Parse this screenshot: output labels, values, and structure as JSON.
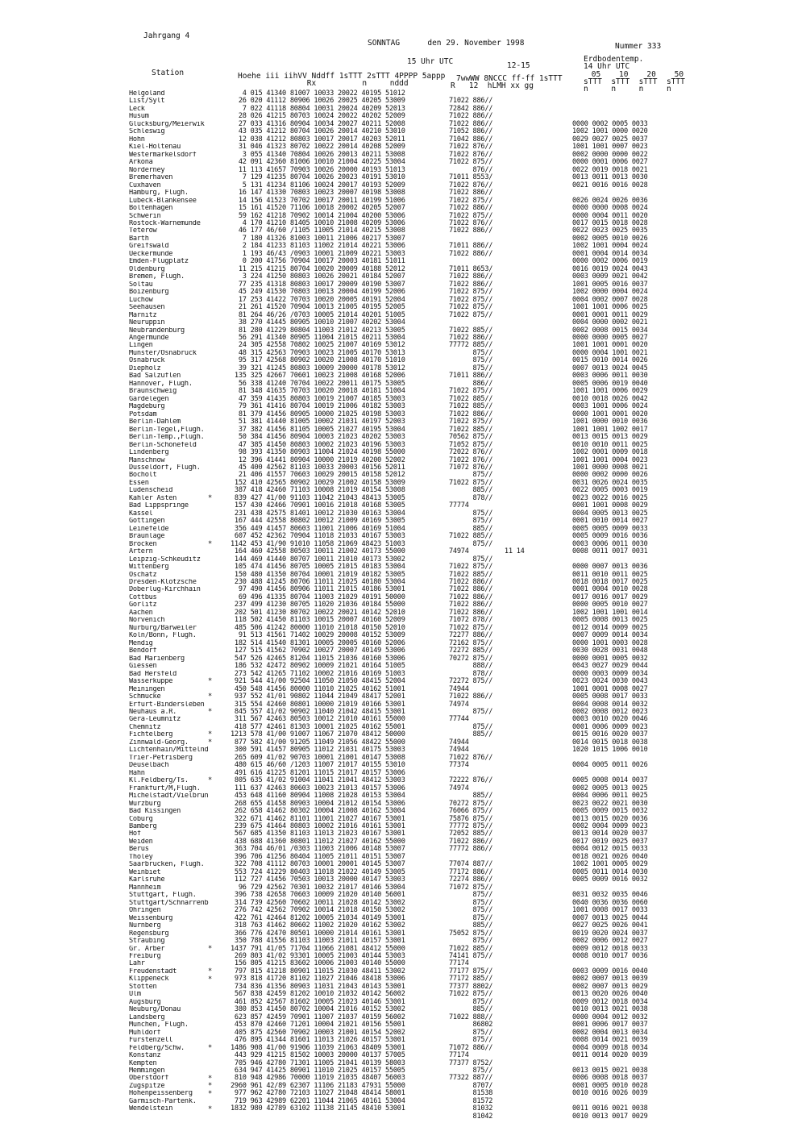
{
  "header": {
    "jahrgang": "Jahrgang 4",
    "date": "SONNTAG      den 29. November 1998",
    "nummer": "Nummer 333"
  },
  "columns": {
    "station": "Station",
    "uhr15": "15 Uhr UTC",
    "r1215": "12-15",
    "erd_title": "Erdbodentemp.",
    "erd_sub": "14 Uhr UTC",
    "erd_depths": " 05    10    20    50",
    "erd_codes": "sTTT  sTTT  sTTT  sTTT",
    "erd_n": "n     n     n     n",
    "main1": "Hoehe iii iihVV Nddff 1sTTT 2sTTT 4PPPP 5appp",
    "main2": "               Rx          n     nddd",
    "ww1": "7wwWW 8NCCC ff-ff 1sTTT",
    "ww2": "R   12  hLMH xx gg"
  },
  "stations": [
    "Helgoland",
    "List/Sylt",
    "Leck",
    "Husum",
    "Glücksburg/Meierwik",
    "Schleswig",
    "Hohn",
    "Kiel-Holtenau",
    "Westermarkelsdorf",
    "Arkona",
    "Norderney",
    "Bremerhaven",
    "Cuxhaven",
    "Hamburg, Flugh.",
    "Lübeck-Blankensee",
    "Boltenhagen",
    "Schwerin",
    "Rostock-Warnemünde",
    "Teterow",
    "Barth",
    "Greifswald",
    "Ueckermünde",
    "Emden-Flugplatz",
    "Oldenburg",
    "Bremen, Flugh.",
    "Soltau",
    "Boizenburg",
    "Lüchow",
    "Seehausen",
    "Marnitz",
    "Neuruppin",
    "Neubrandenburg",
    "Angermünde",
    "Lingen",
    "Münster/Osnabrück",
    "Osnabrück",
    "Diepholz",
    "Bad Salzuflen",
    "Hannover, Flugh.",
    "Braunschweig",
    "Gardelegen",
    "Magdeburg",
    "Potsdam",
    "Berlin-Dahlem",
    "Berlin-Tegel,Flugh.",
    "Berlin-Temp.,Flugh.",
    "Berlin-Schönefeld",
    "Lindenberg",
    "Manschnow",
    "Düsseldorf, Flugh.",
    "Bocholt",
    "Essen",
    "Lüdenscheid",
    "Kahler Asten",
    "Bad Lippspringe",
    "Kassel",
    "Göttingen",
    "Leinefelde",
    "Braunlage",
    "Brocken",
    "Artern",
    "Leipzig-Schkeuditz",
    "Wittenberg",
    "Oschatz",
    "Dresden-Klotzsche",
    "Doberlug-Kirchhain",
    "Cottbus",
    "Görlitz",
    "Aachen",
    "Nörvenich",
    "Nürburg/Barweiler",
    "Köln/Bonn, Flugh.",
    "Mendig",
    "Bendorf",
    "Bad Marienberg",
    "Giessen",
    "Bad Hersfeld",
    "Wasserkuppe",
    "Meiningen",
    "Schmücke",
    "Erfurt-Bindersleben",
    "Neuhaus a.R.",
    "Gera-Leumnitz",
    "Chemnitz",
    "Fichtelberg",
    "Zinnwald-Georg.",
    "Lichtenhain/Mittelnd",
    "Trier-Petrisberg",
    "Deuselbach",
    "Hahn",
    "Kl.Feldberg/Ts.",
    "Frankfurt/M,Flugh.",
    "Michelstadt/Vielbrun",
    "Würzburg",
    "Bad Kissingen",
    "Coburg",
    "Bamberg",
    "Hof",
    "Weiden",
    "Berus",
    "Tholey",
    "Saarbrücken, Flugh.",
    "Weinbiet",
    "Karlsruhe",
    "Mannheim",
    "Stuttgart, Flugh.",
    "Stuttgart/Schnarrenb",
    "Öhringen",
    "Weissenburg",
    "Nürnberg",
    "Regensburg",
    "Straubing",
    "Gr. Arber",
    "Freiburg",
    "Lahr",
    "Freudenstadt",
    "Klippeneck",
    "Stötten",
    "Ulm",
    "Augsburg",
    "Neuburg/Donau",
    "Landsberg",
    "München, Flugh.",
    "Mühldorf",
    "Fürstenzell",
    "Feldberg/Schw.",
    "Konstanz",
    "Kempten",
    "Memmingen",
    "Oberstdorf",
    "Zugspitze",
    "Hohenpeissenberg",
    "Garmisch-Partenk.",
    "Wendelstein"
  ],
  "main": [
    "   4 015 41340 81007 10033 20022 40195 51012",
    "  26 020 41112 80906 10026 20025 40205 53009",
    "   7 022 41118 80804 10031 20024 40209 52013",
    "  28 026 41215 80703 10024 20022 40202 52009",
    "  27 033 41316 80904 10034 20027 40211 52008",
    "  43 035 41212 80704 10026 20014 40210 53010",
    "  12 038 41212 80803 10017 20017 40203 52011",
    "  31 046 41323 80702 10022 20014 40208 52009",
    "   3 055 41340 70804 10026 20013 40211 53008",
    "  42 091 42360 81006 10010 21004 40225 53004",
    "  11 113 41657 70903 10026 20000 40193 51013",
    "   7 129 41235 80704 10026 20023 40191 53010",
    "   5 131 41234 81106 10024 20017 40193 52009",
    "  16 147 41330 70803 10023 20007 40198 53008",
    "  14 156 41523 70702 10017 20011 40199 51006",
    "  15 161 41520 71106 10018 20002 40205 52007",
    "  59 162 41218 70902 10014 21004 40200 53006",
    "   4 170 41210 81405 10010 21008 40209 53006",
    "  46 177 46/60 /1105 11005 21014 40215 53008",
    "   7 180 41326 81003 10011 21006 40217 53007",
    "   2 184 41233 81103 11002 21014 40221 53006",
    "   1 193 46/43 /0903 10001 21009 40221 53003",
    "   0 200 41756 70904 10017 20003 40181 51011",
    "  11 215 41215 80704 10020 20009 40188 52012",
    "   3 224 41250 80803 10026 20021 40184 52007",
    "  77 235 41318 80803 10017 20009 40190 53007",
    "  45 249 41530 70803 10013 20004 40199 52006",
    "  17 253 41422 70703 10020 20005 40191 52004",
    "  21 261 41520 70904 10013 21005 40195 52005",
    "  81 264 46/26 /0703 10005 21014 40201 51005",
    "  38 270 41445 80905 10010 21007 40202 53004",
    "  81 280 41229 80804 11003 21012 40213 53005",
    "  56 291 41340 80905 11004 21015 40211 53004",
    "  24 305 42558 70802 10025 21007 40169 53012",
    "  48 315 42563 70903 10023 21005 40170 53013",
    "  95 317 42568 80902 10020 21008 40170 51010",
    "  39 321 41245 80803 10009 20000 40178 53012",
    " 135 325 42667 70601 10023 21008 40168 52006",
    "  56 338 41240 70704 10022 20011 40175 53005",
    "  81 348 41635 70703 10020 20018 40181 51004",
    "  47 359 41435 80803 10019 21007 40185 53003",
    "  79 361 41416 80704 10019 21006 40182 53003",
    "  81 379 41456 80905 10000 21025 40198 53003",
    "  51 381 41440 81005 10002 21031 40197 52003",
    "  37 382 41456 81105 10005 21027 40195 53004",
    "  50 384 41456 80904 10003 21023 40202 53003",
    "  47 385 41450 80803 10002 21023 40196 53003",
    "  98 393 41350 80903 11004 21024 40198 55000",
    "  12 396 41441 80904 10000 21019 40200 52002",
    "  45 400 42562 81103 10033 20003 40156 52011",
    "  21 406 41557 70603 10029 20015 40158 52012",
    " 152 410 42565 80902 10029 21002 40158 53009",
    " 387 418 42460 71103 10008 21019 40154 53008",
    " 839 427 41/00 91103 11042 21043 48413 53005",
    " 157 430 42466 70901 10016 21018 40168 53005",
    " 231 438 42575 81401 10012 21030 40163 53004",
    " 167 444 42558 80802 10012 21009 40169 53005",
    " 356 449 41457 80603 11001 21006 40169 51004",
    " 607 452 42362 70904 11018 21033 40167 53003",
    "1142 453 41/90 91010 11058 21069 48423 51003",
    " 164 460 42558 80503 10011 21002 40173 55000",
    " 144 469 41440 80707 10011 21010 40173 53002",
    " 105 474 41456 80705 10005 21015 40183 53004",
    " 150 480 41350 80704 10001 21019 40182 53005",
    " 230 488 41245 80706 11011 21025 40180 53004",
    "  97 490 41456 80906 11011 21015 40186 53001",
    "  69 496 41335 80704 11003 21029 40191 50000",
    " 237 499 41230 80705 11020 21036 40184 55000",
    " 202 501 41230 80702 10022 20021 40142 52010",
    " 118 502 41450 81103 10015 20007 40160 52009",
    " 485 506 41242 80000 11010 21018 40150 52010",
    "  91 513 41561 71402 10029 20008 40152 53009",
    " 182 514 41540 81301 10005 20005 40160 52006",
    " 127 515 41562 70902 10027 20007 40149 53006",
    " 547 526 42465 81204 11015 21036 40160 53006",
    " 186 532 42472 80902 10009 21021 40164 51005",
    " 273 542 41265 71102 10002 21016 40169 51003",
    " 921 544 41/00 92504 11050 21050 48415 52004",
    " 450 548 41456 80000 11010 21025 40162 51001",
    " 937 552 41/01 90802 11044 21049 48417 52001",
    " 315 554 42460 80801 10000 21019 40166 53001",
    " 845 557 41/02 90902 11040 21042 48415 53001",
    " 311 567 42463 80503 10012 21010 40161 55000",
    " 418 577 42461 81303 10001 21025 40162 55001",
    "1213 578 41/00 91007 11067 21070 48412 50000",
    " 877 582 41/00 91205 11049 21056 48422 55000",
    " 300 591 41457 80905 11012 21031 40175 53003",
    " 265 609 41/02 90703 10001 21001 40147 53008",
    " 480 615 46/60 /1203 11007 21017 40155 53010",
    " 491 616 41225 81201 11015 21017 40157 53006",
    " 805 635 41/02 91004 11041 21041 48412 53003",
    " 111 637 42463 80603 10023 21013 40157 53006",
    " 453 648 41160 80904 11008 21028 40153 53004",
    " 268 655 41458 80903 10004 21012 40154 53006",
    " 262 658 41462 80302 10004 21008 40162 53004",
    " 322 671 41462 81101 11001 21027 40167 53001",
    " 239 675 41464 80803 10002 21016 40161 53001",
    " 567 685 41350 81103 11013 21023 40167 53001",
    " 438 688 41360 80801 11012 21027 40162 55000",
    " 363 704 46/01 /0303 11003 21006 40148 53007",
    " 396 706 41256 80404 11005 21011 40151 53007",
    " 322 708 41112 80703 10001 20001 40145 53007",
    " 553 724 41229 80403 11018 21022 40149 53005",
    " 112 727 41456 70503 10013 20000 40147 53003",
    "  96 729 42562 70301 10032 21017 40146 53004",
    " 396 738 42658 70603 10009 21020 40140 56001",
    " 314 739 42560 70602 10011 21028 40142 53002",
    " 276 742 42562 70902 10014 21018 40150 53002",
    " 422 761 42464 81202 10005 21034 40149 53001",
    " 318 763 41462 80602 11002 21020 40162 53002",
    " 366 776 42470 80501 10000 21014 40161 53001",
    " 350 788 41556 81103 11003 21011 40157 53001",
    "1437 791 41/05 71704 11066 21081 48412 55000",
    " 269 803 41/02 93301 10005 21003 40144 53003",
    " 156 805 41215 83602 10006 21003 40140 55000",
    " 797 815 41218 80901 11015 21030 48411 53002",
    " 973 818 41720 81102 11027 21046 48418 53006",
    " 734 836 41356 80903 11031 21043 40143 53001",
    " 567 838 42459 81202 10010 21032 40142 56002",
    " 461 852 42567 81602 10005 21023 40146 53001",
    " 380 853 41450 80702 10004 21016 40152 53002",
    " 623 857 42459 70901 11007 21037 40159 56002",
    " 453 870 42460 71201 10004 21021 40156 55001",
    " 405 875 42560 70902 10003 21001 40154 52002",
    " 476 895 41344 81601 11013 21026 40157 53001",
    "1486 908 41/00 91906 11039 21063 48409 53001",
    " 443 929 41215 81502 10003 20000 40137 57005",
    " 705 946 42780 71301 11005 21041 40139 58003",
    " 634 947 41425 80901 11010 21025 40157 55005",
    " 810 948 42986 70000 11019 21035 48407 56003",
    "2960 961 42/89 62307 11106 21183 47931 55000",
    " 977 962 42780 72103 11027 21048 48414 58001",
    " 719 963 42989 62201 11044 21065 40161 53004",
    "1832 980 42789 63102 11138 21145 48410 53001"
  ],
  "ww": [
    "",
    "71022 886//",
    "72842 886//",
    "71022 886//",
    "71022 886//",
    "71052 886//",
    "71042 886//",
    "71022 876//",
    "71022 876//",
    "71022 875//",
    "      876//",
    "71011 8553/",
    "71022 876//",
    "71022 886//",
    "71022 875//",
    "71022 886//",
    "71022 875//",
    "71022 876//",
    "71022 886//",
    "",
    "71011 886//",
    "71022 886//",
    "",
    "71011 8653/",
    "71022 886//",
    "71022 886//",
    "71022 875//",
    "71022 875//",
    "71022 875//",
    "71022 875//",
    "",
    "71022 885//",
    "71022 886//",
    "77772 885//",
    "      875//",
    "      875//",
    "      875//",
    "71011 886//",
    "      886//",
    "71022 875//",
    "71022 885//",
    "71022 885//",
    "71022 886//",
    "71022 875//",
    "71022 885//",
    "70562 875//",
    "71052 875//",
    "72022 876//",
    "71022 876//",
    "71072 876//",
    "      875//",
    "71022 875//",
    "      885//",
    "      878//",
    "77774",
    "      875//",
    "      875//",
    "      885//",
    "71022 885//",
    "      875//",
    "74974         11 14",
    "      875//",
    "71022 875//",
    "71022 885//",
    "71022 886//",
    "71022 886//",
    "71022 886//",
    "71022 886//",
    "71022 886//",
    "71072 878//",
    "71022 875//",
    "72277 886//",
    "72162 875//",
    "72272 885//",
    "70272 875//",
    "      888//",
    "      878//",
    "72272 875//",
    "74944",
    "71022 886//",
    "74974",
    "      875//",
    "77744",
    "      875//",
    "      885//",
    "74944",
    "74944",
    "71022 876//",
    "77374",
    "",
    "72222 876//",
    "74974",
    "      885//",
    "70272 875//",
    "76066 875//",
    "75876 875//",
    "77772 875//",
    "72052 885//",
    "71022 886//",
    "77772 886//",
    "",
    "77074 887//",
    "77172 886//",
    "72274 886//",
    "71072 875//",
    "      875//",
    "      875//",
    "      875//",
    "      875//",
    "      885//",
    "75052 875//",
    "      875//",
    "71022 885//",
    "74141 875//",
    "77174",
    "77177 875//",
    "77172 885//",
    "77377 8802/",
    "71022 875//",
    "      875//",
    "      885//",
    "71022 888//",
    "      86802",
    "      875//",
    "      875//",
    "71072 886//",
    "77174",
    "77377 8752/",
    "      875//",
    "77322 887//",
    "      8707/",
    "      81538",
    "      81572",
    "      81032",
    "      81042"
  ],
  "erd": [
    "",
    "",
    "",
    "",
    "0000 0002 0005 0033",
    "1002 1001 0000 0020",
    "0029 0027 0025 0037",
    "1001 1001 0007 0023",
    "0002 0000 0000 0022",
    "0000 0001 0006 0027",
    "0022 0019 0018 0021",
    "0013 0011 0013 0030",
    "0021 0016 0016 0028",
    "",
    "0026 0024 0026 0036",
    "0000 0000 0008 0024",
    "0000 0004 0011 0020",
    "0017 0015 0018 0028",
    "0022 0023 0025 0035",
    "0002 0005 0010 0026",
    "1002 1001 0004 0024",
    "0001 0004 0014 0034",
    "0000 0002 0006 0019",
    "0016 0019 0024 0043",
    "0003 0009 0021 0042",
    "1001 0005 0016 0037",
    "1002 0000 0004 0024",
    "0004 0002 0007 0028",
    "1001 1001 0006 0025",
    "0001 0001 0011 0029",
    "0004 0000 0002 0021",
    "0002 0008 0015 0034",
    "0000 0000 0005 0027",
    "1001 1001 0001 0020",
    "0000 0004 1001 0021",
    "0015 0010 0014 0026",
    "0007 0013 0024 0045",
    "0003 0006 0011 0030",
    "0005 0006 0019 0040",
    "1001 1001 0006 0029",
    "0010 0018 0026 0042",
    "0003 1001 0006 0024",
    "0000 1001 0001 0020",
    "1001 0000 0010 0036",
    "1001 1001 1002 0017",
    "0013 0015 0013 0029",
    "0010 0010 0011 0025",
    "1002 0001 0009 0018",
    "1001 1001 0004 0023",
    "1001 0000 0008 0021",
    "0000 0002 0000 0026",
    "0031 0026 0024 0035",
    "0022 0005 0003 0019",
    "0023 0022 0016 0025",
    "0001 1001 0008 0029",
    "0004 0005 0013 0025",
    "0001 0010 0014 0027",
    "0005 0005 0009 0033",
    "0005 0009 0016 0036",
    "0003 0006 0011 0030",
    "0008 0011 0017 0031",
    "",
    "0000 0007 0013 0036",
    "0011 0010 0011 0025",
    "0018 0018 0017 0025",
    "0001 0004 0010 0028",
    "0017 0016 0017 0029",
    "0000 0005 0010 0027",
    "1002 1001 1001 0014",
    "0005 0008 0013 0025",
    "0012 0014 0009 0025",
    "0007 0009 0014 0034",
    "0000 1001 0003 0028",
    "0030 0028 0031 0048",
    "0000 0001 0005 0032",
    "0043 0027 0029 0044",
    "0000 0003 0009 0034",
    "0023 0024 0030 0043",
    "1001 0001 0008 0027",
    "0005 0008 0017 0033",
    "0004 0008 0014 0032",
    "0002 0008 0012 0023",
    "0003 0010 0020 0046",
    "0001 0006 0009 0023",
    "0015 0016 0020 0037",
    "0014 0015 0018 0038",
    "1020 1015 1006 0010",
    "",
    "0004 0005 0011 0026",
    "",
    "0005 0008 0014 0037",
    "0002 0005 0013 0025",
    "0004 0006 0011 0025",
    "0023 0022 0021 0030",
    "0005 0009 0015 0032",
    "0013 0015 0020 0036",
    "0002 0004 0009 0023",
    "0013 0014 0020 0037",
    "0017 0019 0025 0037",
    "0004 0012 0015 0033",
    "0018 0021 0026 0040",
    "1002 1001 0005 0029",
    "0005 0011 0014 0030",
    "0005 0009 0016 0032",
    "",
    "0031 0032 0035 0046",
    "0040 0036 0036 0060",
    "1001 0008 0017 0033",
    "0007 0013 0025 0044",
    "0027 0025 0026 0041",
    "0019 0020 0024 0037",
    "0002 0006 0012 0027",
    "0009 0012 0018 0033",
    "0008 0010 0017 0036",
    "",
    "0003 0009 0016 0040",
    "0002 0007 0013 0039",
    "0002 0007 0013 0029",
    "0013 0020 0026 0040",
    "0009 0012 0018 0034",
    "0010 0013 0021 0038",
    "0000 0004 0012 0032",
    "0001 0006 0017 0037",
    "0002 0004 0013 0034",
    "0008 0014 0021 0039",
    "0004 0009 0018 0034",
    "0011 0014 0020 0039",
    "",
    "0013 0015 0021 0038",
    "0006 0008 0018 0037",
    "0001 0005 0010 0028",
    "0010 0016 0026 0039",
    "",
    "0011 0016 0021 0038",
    "0010 0013 0017 0029"
  ],
  "starred": [
    "Kahler Asten",
    "Brocken",
    "Wasserkuppe",
    "Schmücke",
    "Neuhaus a.R.",
    "Fichtelberg",
    "Zinnwald-Georg.",
    "Kl.Feldberg/Ts.",
    "Gr. Arber",
    "Freudenstadt",
    "Klippeneck",
    "Feldberg/Schw.",
    "Oberstdorf",
    "Zugspitze",
    "Hohenpeissenberg",
    "Wendelstein"
  ],
  "star_symbol": "*"
}
